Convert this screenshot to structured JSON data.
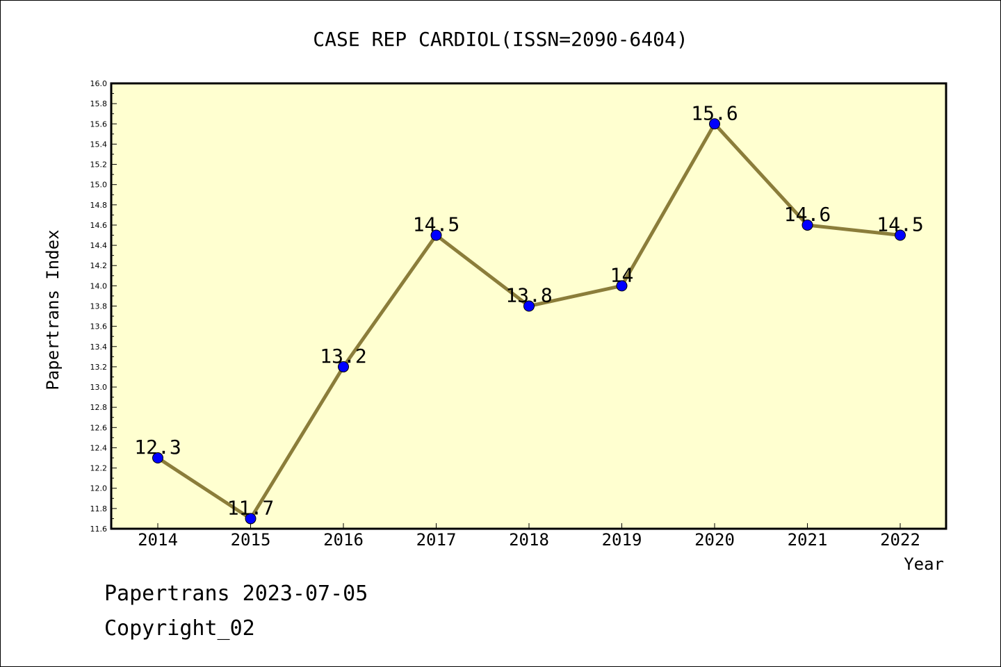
{
  "chart_data": {
    "type": "line",
    "title": "CASE REP CARDIOL(ISSN=2090-6404)",
    "xlabel": "Year",
    "ylabel": "Papertrans Index",
    "categories": [
      "2014",
      "2015",
      "2016",
      "2017",
      "2018",
      "2019",
      "2020",
      "2021",
      "2022"
    ],
    "values": [
      12.3,
      11.7,
      13.2,
      14.5,
      13.8,
      14,
      15.6,
      14.6,
      14.5
    ],
    "value_labels": [
      "12.3",
      "11.7",
      "13.2",
      "14.5",
      "13.8",
      "14",
      "15.6",
      "14.6",
      "14.5"
    ],
    "ylim": [
      11.6,
      16.0
    ],
    "ytick_step": 0.2,
    "ytick_labels": [
      "11.6",
      "11.8",
      "12.0",
      "12.2",
      "12.4",
      "12.6",
      "12.8",
      "13.0",
      "13.2",
      "13.4",
      "13.6",
      "13.8",
      "14.0",
      "14.2",
      "14.4",
      "14.6",
      "14.8",
      "15.0",
      "15.2",
      "15.4",
      "15.6",
      "15.8",
      "16.0"
    ],
    "grid": false,
    "legend": "none",
    "colors": {
      "plot_bg": "#ffffd0",
      "line": "#8b7d3a",
      "marker": "#0000ff"
    }
  },
  "footer": {
    "date_line": "Papertrans 2023-07-05",
    "copyright": "Copyright_02"
  }
}
